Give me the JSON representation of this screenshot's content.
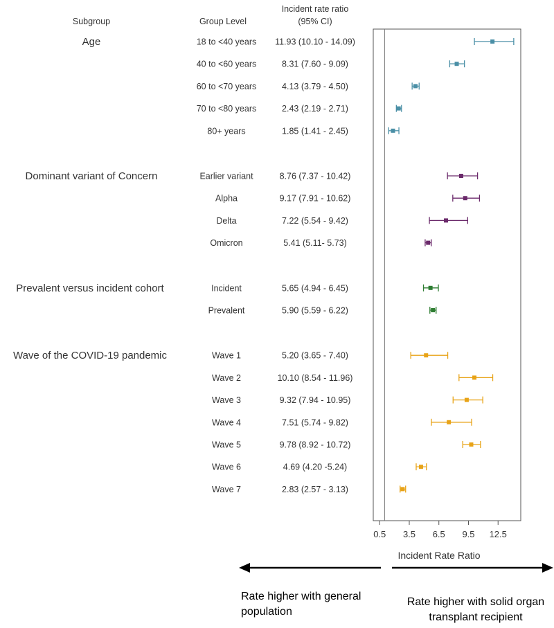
{
  "chart_data": {
    "type": "forest",
    "headers": {
      "subgroup": "Subgroup",
      "level": "Group Level",
      "ratio_line1": "Incident rate ratio",
      "ratio_line2": "(95% CI)"
    },
    "groups": [
      {
        "name": "Age",
        "color": "#4a8fa6",
        "rows": [
          {
            "level": "18 to <40 years",
            "label": "11.93 (10.10 - 14.09)",
            "est": 11.93,
            "lo": 10.1,
            "hi": 14.09
          },
          {
            "level": "40 to <60 years",
            "label": "8.31 (7.60 - 9.09)",
            "est": 8.31,
            "lo": 7.6,
            "hi": 9.09
          },
          {
            "level": "60 to <70 years",
            "label": "4.13 (3.79 - 4.50)",
            "est": 4.13,
            "lo": 3.79,
            "hi": 4.5
          },
          {
            "level": "70 to <80 years",
            "label": "2.43 (2.19 - 2.71)",
            "est": 2.43,
            "lo": 2.19,
            "hi": 2.71
          },
          {
            "level": "80+ years",
            "label": "1.85 (1.41 - 2.45)",
            "est": 1.85,
            "lo": 1.41,
            "hi": 2.45
          }
        ]
      },
      {
        "name": "Dominant variant of Concern",
        "color": "#6b2a6b",
        "rows": [
          {
            "level": "Earlier variant",
            "label": "8.76 (7.37 - 10.42)",
            "est": 8.76,
            "lo": 7.37,
            "hi": 10.42
          },
          {
            "level": "Alpha",
            "label": "9.17 (7.91 - 10.62)",
            "est": 9.17,
            "lo": 7.91,
            "hi": 10.62
          },
          {
            "level": "Delta",
            "label": "7.22 (5.54 - 9.42)",
            "est": 7.22,
            "lo": 5.54,
            "hi": 9.42
          },
          {
            "level": "Omicron",
            "label": "5.41 (5.11- 5.73)",
            "est": 5.41,
            "lo": 5.11,
            "hi": 5.73
          }
        ]
      },
      {
        "name": "Prevalent versus incident cohort",
        "color": "#2e7d32",
        "rows": [
          {
            "level": "Incident",
            "label": "5.65 (4.94 - 6.45)",
            "est": 5.65,
            "lo": 4.94,
            "hi": 6.45
          },
          {
            "level": "Prevalent",
            "label": "5.90 (5.59 - 6.22)",
            "est": 5.9,
            "lo": 5.59,
            "hi": 6.22
          }
        ]
      },
      {
        "name": "Wave of the COVID-19 pandemic",
        "color": "#e8a317",
        "rows": [
          {
            "level": "Wave 1",
            "label": "5.20 (3.65 - 7.40)",
            "est": 5.2,
            "lo": 3.65,
            "hi": 7.4
          },
          {
            "level": "Wave 2",
            "label": "10.10 (8.54 - 11.96)",
            "est": 10.1,
            "lo": 8.54,
            "hi": 11.96
          },
          {
            "level": "Wave 3",
            "label": "9.32 (7.94 - 10.95)",
            "est": 9.32,
            "lo": 7.94,
            "hi": 10.95
          },
          {
            "level": "Wave 4",
            "label": "7.51 (5.74 - 9.82)",
            "est": 7.51,
            "lo": 5.74,
            "hi": 9.82
          },
          {
            "level": "Wave 5",
            "label": "9.78 (8.92 - 10.72)",
            "est": 9.78,
            "lo": 8.92,
            "hi": 10.72
          },
          {
            "level": "Wave 6",
            "label": "4.69 (4.20 -5.24)",
            "est": 4.69,
            "lo": 4.2,
            "hi": 5.24
          },
          {
            "level": "Wave 7",
            "label": "2.83 (2.57 - 3.13)",
            "est": 2.83,
            "lo": 2.57,
            "hi": 3.13
          }
        ]
      }
    ],
    "x_axis": {
      "label": "Incident Rate Ratio",
      "ticks": [
        0.5,
        3.5,
        6.5,
        9.5,
        12.5
      ],
      "tick_labels": [
        "0.5",
        "3.5",
        "6.5",
        "9.5",
        "12.5"
      ],
      "xlim": [
        -0.15,
        14.8
      ],
      "reference_line": 1
    },
    "annotations": {
      "left": "Rate higher with general population",
      "right": "Rate higher with solid organ transplant recipient"
    }
  }
}
